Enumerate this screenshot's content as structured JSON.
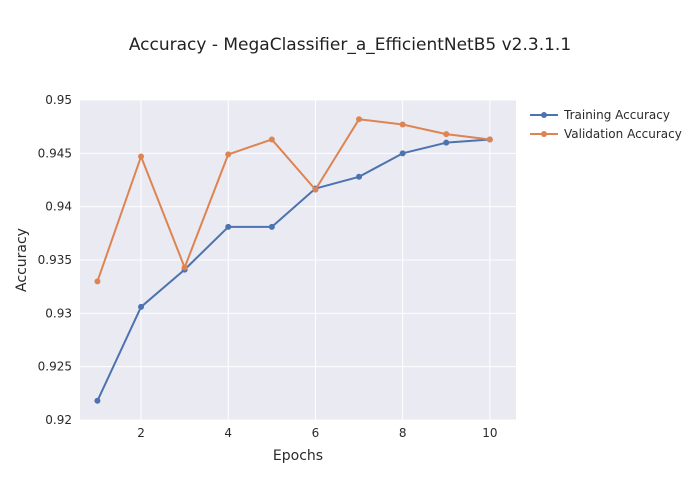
{
  "chart_data": {
    "type": "line",
    "title": "Accuracy - MegaClassifier_a_EfficientNetB5 v2.3.1.1",
    "xlabel": "Epochs",
    "ylabel": "Accuracy",
    "x": [
      1,
      2,
      3,
      4,
      5,
      6,
      7,
      8,
      9,
      10
    ],
    "xlim": [
      0.6,
      10.6
    ],
    "ylim": [
      0.92,
      0.95
    ],
    "xticks": [
      2,
      4,
      6,
      8,
      10
    ],
    "xtick_labels": [
      "2",
      "4",
      "6",
      "8",
      "10"
    ],
    "yticks": [
      0.92,
      0.925,
      0.93,
      0.935,
      0.94,
      0.945,
      0.95
    ],
    "ytick_labels": [
      "0.92",
      "0.925",
      "0.93",
      "0.935",
      "0.94",
      "0.945",
      "0.95"
    ],
    "grid": true,
    "legend_position": "top-right",
    "series": [
      {
        "name": "Training Accuracy",
        "color": "#4c72b0",
        "values": [
          0.9218,
          0.9306,
          0.9341,
          0.9381,
          0.9381,
          0.9417,
          0.9428,
          0.945,
          0.946,
          0.9463
        ]
      },
      {
        "name": "Validation Accuracy",
        "color": "#dd8452",
        "values": [
          0.933,
          0.9447,
          0.9343,
          0.9449,
          0.9463,
          0.9416,
          0.9482,
          0.9477,
          0.9468,
          0.9463
        ]
      }
    ]
  }
}
